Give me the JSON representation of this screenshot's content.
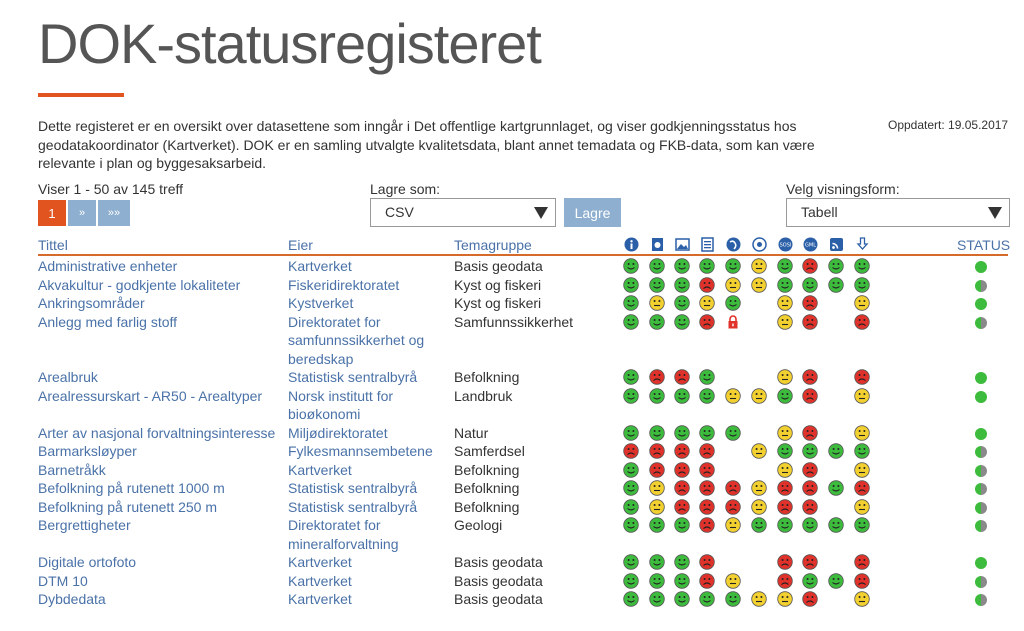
{
  "header": {
    "title": "DOK-statusregisteret",
    "intro": "Dette registeret er en oversikt over datasettene som inngår i Det offentlige kartgrunnlaget, og viser godkjenningsstatus hos geodatakoordinator (Kartverket). DOK er en samling utvalgte kvalitetsdata, blant annet temadata og FKB-data, som kan være relevante i plan og byggesaksarbeid.",
    "updated": "Oppdatert: 19.05.2017",
    "accent_color": "#e1541f"
  },
  "toolbar": {
    "result_count": "Viser 1 - 50 av 145 treff",
    "pager": {
      "current": "1",
      "next": "»",
      "last": "»»"
    },
    "save_label": "Lagre som:",
    "save_format": "CSV",
    "save_button": "Lagre",
    "view_label": "Velg visningsform:",
    "view_value": "Tabell"
  },
  "table": {
    "headers": {
      "title": "Tittel",
      "owner": "Eier",
      "theme": "Temagruppe",
      "status": "STATUS"
    },
    "header_icons": [
      "info-icon",
      "product-sheet-icon",
      "image-icon",
      "list-icon",
      "globe-icon",
      "wms-icon",
      "sosi-icon",
      "gml-icon",
      "rss-icon",
      "download-icon"
    ],
    "colors": {
      "good": "#3dbb3d",
      "warn": "#f2d030",
      "bad": "#e0322a",
      "link": "#4a72a8"
    },
    "rows": [
      {
        "title": "Administrative enheter",
        "owner": "Kartverket",
        "theme": "Basis geodata",
        "marks": [
          "g",
          "g",
          "g",
          "g",
          "g",
          "y",
          "g",
          "r",
          "g",
          "g"
        ],
        "status": "g"
      },
      {
        "title": "Akvakultur - godkjente lokaliteter",
        "owner": "Fiskeridirektoratet",
        "theme": "Kyst og fiskeri",
        "marks": [
          "g",
          "g",
          "g",
          "r",
          "y",
          "y",
          "g",
          "g",
          "g",
          "g"
        ],
        "status": "gr"
      },
      {
        "title": "Ankringsområder",
        "owner": "Kystverket",
        "theme": "Kyst og fiskeri",
        "marks": [
          "g",
          "y",
          "g",
          "y",
          "g",
          "",
          "y",
          "r",
          "",
          "y"
        ],
        "status": "g"
      },
      {
        "title": "Anlegg med farlig stoff",
        "owner": "Direktoratet for samfunnssikkerhet og beredskap",
        "theme": "Samfunnssikkerhet",
        "marks": [
          "g",
          "g",
          "g",
          "r",
          "lock",
          "",
          "y",
          "r",
          "",
          "r"
        ],
        "status": "gr"
      },
      {
        "title": "Arealbruk",
        "owner": "Statistisk sentralbyrå",
        "theme": "Befolkning",
        "marks": [
          "g",
          "r",
          "r",
          "g",
          "",
          "",
          "y",
          "r",
          "",
          "r"
        ],
        "status": "g"
      },
      {
        "title": "Arealressurskart - AR50 - Arealtyper",
        "owner": "Norsk institutt for bioøkonomi",
        "theme": "Landbruk",
        "marks": [
          "g",
          "g",
          "g",
          "g",
          "y",
          "y",
          "g",
          "r",
          "",
          "y"
        ],
        "status": "g"
      },
      {
        "title": "Arter av nasjonal forvaltningsinteresse",
        "owner": "Miljødirektoratet",
        "theme": "Natur",
        "marks": [
          "g",
          "g",
          "g",
          "g",
          "g",
          "",
          "y",
          "r",
          "",
          "y"
        ],
        "status": "g"
      },
      {
        "title": "Barmarksløyper",
        "owner": "Fylkesmannsembetene",
        "theme": "Samferdsel",
        "marks": [
          "r",
          "r",
          "r",
          "r",
          "",
          "y",
          "g",
          "g",
          "g",
          "g"
        ],
        "status": "gr"
      },
      {
        "title": "Barnetråkk",
        "owner": "Kartverket",
        "theme": "Befolkning",
        "marks": [
          "g",
          "r",
          "r",
          "r",
          "",
          "",
          "y",
          "r",
          "",
          "y"
        ],
        "status": "gr"
      },
      {
        "title": "Befolkning på rutenett 1000 m",
        "owner": "Statistisk sentralbyrå",
        "theme": "Befolkning",
        "marks": [
          "g",
          "y",
          "r",
          "r",
          "r",
          "y",
          "r",
          "r",
          "g",
          "r"
        ],
        "status": "gr"
      },
      {
        "title": "Befolkning på rutenett 250 m",
        "owner": "Statistisk sentralbyrå",
        "theme": "Befolkning",
        "marks": [
          "g",
          "y",
          "r",
          "r",
          "r",
          "y",
          "r",
          "r",
          "",
          "y"
        ],
        "status": "gr"
      },
      {
        "title": "Bergrettigheter",
        "owner": "Direktoratet for mineralforvaltning",
        "theme": "Geologi",
        "marks": [
          "g",
          "g",
          "g",
          "r",
          "y",
          "g",
          "g",
          "g",
          "g",
          "g"
        ],
        "status": "gr"
      },
      {
        "title": "Digitale ortofoto",
        "owner": "Kartverket",
        "theme": "Basis geodata",
        "marks": [
          "g",
          "g",
          "g",
          "r",
          "",
          "",
          "r",
          "r",
          "",
          "r"
        ],
        "status": "g"
      },
      {
        "title": "DTM 10",
        "owner": "Kartverket",
        "theme": "Basis geodata",
        "marks": [
          "g",
          "g",
          "g",
          "r",
          "y",
          "",
          "r",
          "g",
          "g",
          "r"
        ],
        "status": "gr"
      },
      {
        "title": "Dybdedata",
        "owner": "Kartverket",
        "theme": "Basis geodata",
        "marks": [
          "g",
          "g",
          "g",
          "g",
          "g",
          "y",
          "y",
          "r",
          "",
          "y"
        ],
        "status": "gr"
      }
    ]
  }
}
